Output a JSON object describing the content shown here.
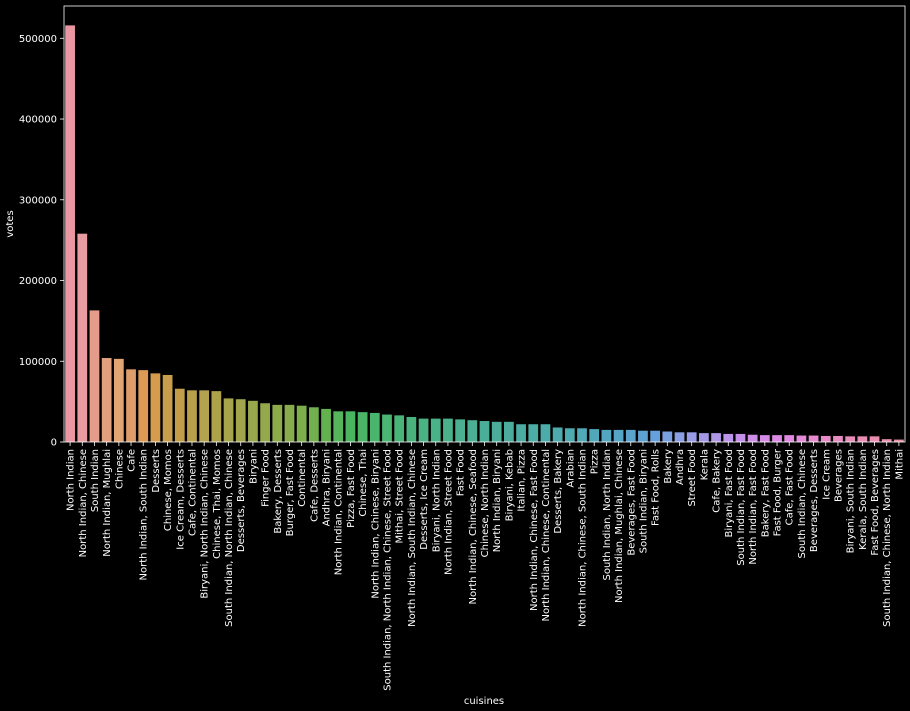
{
  "chart_data": {
    "type": "bar",
    "title": "",
    "xlabel": "cuisines",
    "ylabel": "votes",
    "ylim": [
      0,
      540000
    ],
    "yticks": [
      0,
      100000,
      200000,
      300000,
      400000,
      500000
    ],
    "grid": false,
    "legend": "none",
    "categories": [
      "North Indian",
      "North Indian, Chinese",
      "South Indian",
      "North Indian, Mughlai",
      "Chinese",
      "Cafe",
      "North Indian, South Indian",
      "Desserts",
      "Chinese, Momos",
      "Ice Cream, Desserts",
      "Cafe, Continental",
      "Biryani, North Indian, Chinese",
      "Chinese, Thai, Momos",
      "South Indian, North Indian, Chinese",
      "Desserts, Beverages",
      "Biryani",
      "Finger Food",
      "Bakery, Desserts",
      "Burger, Fast Food",
      "Continental",
      "Cafe, Desserts",
      "Andhra, Biryani",
      "North Indian, Continental",
      "Pizza, Fast Food",
      "Chinese, Thai",
      "North Indian, Chinese, Biryani",
      "South Indian, North Indian, Chinese, Street Food",
      "Mithai, Street Food",
      "North Indian, South Indian, Chinese",
      "Desserts, Ice Cream",
      "Biryani, North Indian",
      "North Indian, Street Food",
      "Fast Food",
      "North Indian, Chinese, Seafood",
      "Chinese, North Indian",
      "North Indian, Biryani",
      "Biryani, Kebab",
      "Italian, Pizza",
      "North Indian, Chinese, Fast Food",
      "North Indian, Chinese, Continental",
      "Desserts, Bakery",
      "Arabian",
      "North Indian, Chinese, South Indian",
      "Pizza",
      "South Indian, North Indian",
      "North Indian, Mughlai, Chinese",
      "Beverages, Fast Food",
      "South Indian, Biryani",
      "Fast Food, Rolls",
      "Bakery",
      "Andhra",
      "Street Food",
      "Kerala",
      "Cafe, Bakery",
      "Biryani, Fast Food",
      "South Indian, Fast Food",
      "North Indian, Fast Food",
      "Bakery, Fast Food",
      "Fast Food, Burger",
      "Cafe, Fast Food",
      "South Indian, Chinese",
      "Beverages, Desserts",
      "Ice Cream",
      "Beverages",
      "Biryani, South Indian",
      "Kerala, South Indian",
      "Fast Food, Beverages",
      "South Indian, Chinese, North Indian",
      "Mithai"
    ],
    "values": [
      516000,
      258000,
      163000,
      104000,
      103000,
      90000,
      89000,
      85000,
      83000,
      66000,
      64000,
      64000,
      63000,
      54000,
      53000,
      51000,
      48000,
      46000,
      46000,
      45000,
      43000,
      41000,
      38000,
      38000,
      37000,
      36000,
      34000,
      33000,
      31000,
      29000,
      29000,
      29000,
      28000,
      27000,
      26000,
      25000,
      25000,
      22000,
      22000,
      22000,
      18000,
      17000,
      17000,
      16000,
      15000,
      15000,
      15000,
      14000,
      14000,
      13000,
      12000,
      12000,
      11000,
      11000,
      10000,
      10000,
      9000,
      8500,
      8500,
      8500,
      8000,
      8000,
      7500,
      7500,
      7000,
      7000,
      7000,
      3500,
      3000
    ],
    "colors": [
      "#ea96a3",
      "#e89ba1",
      "#e59c8a",
      "#e3a07c",
      "#e1a473",
      "#de9c6a",
      "#dd9a54",
      "#d49c4c",
      "#c89e4c",
      "#c29e4a",
      "#b9a14c",
      "#b3a24e",
      "#aba24a",
      "#a5a54b",
      "#a1a54c",
      "#99a74c",
      "#94a94c",
      "#8dab4b",
      "#86ac4d",
      "#7dae4c",
      "#72b04f",
      "#64b24f",
      "#55b45c",
      "#4ab560",
      "#4bb466",
      "#4ab66c",
      "#4ab672",
      "#49b378",
      "#4ab27d",
      "#4ab283",
      "#4ab287",
      "#4ab18b",
      "#4bb08f",
      "#4aaf93",
      "#4bae96",
      "#4bad9a",
      "#4bac9e",
      "#4bada1",
      "#4bada6",
      "#4baca9",
      "#4eabad",
      "#4eaab1",
      "#4fa9b6",
      "#51a8ba",
      "#53a6bf",
      "#56a4c6",
      "#59a3cc",
      "#5ea2d4",
      "#66a0dd",
      "#7aa0e0",
      "#8a9ee3",
      "#989be5",
      "#a498e6",
      "#b096e7",
      "#bb93e8",
      "#c48fe8",
      "#cd8de7",
      "#d58be6",
      "#dc89e5",
      "#e188e3",
      "#e488d8",
      "#e689cf",
      "#e78ac7",
      "#e88bc0",
      "#e88cba",
      "#e98db5",
      "#e98eaf",
      "#ea8fab",
      "#ea91a6"
    ]
  }
}
